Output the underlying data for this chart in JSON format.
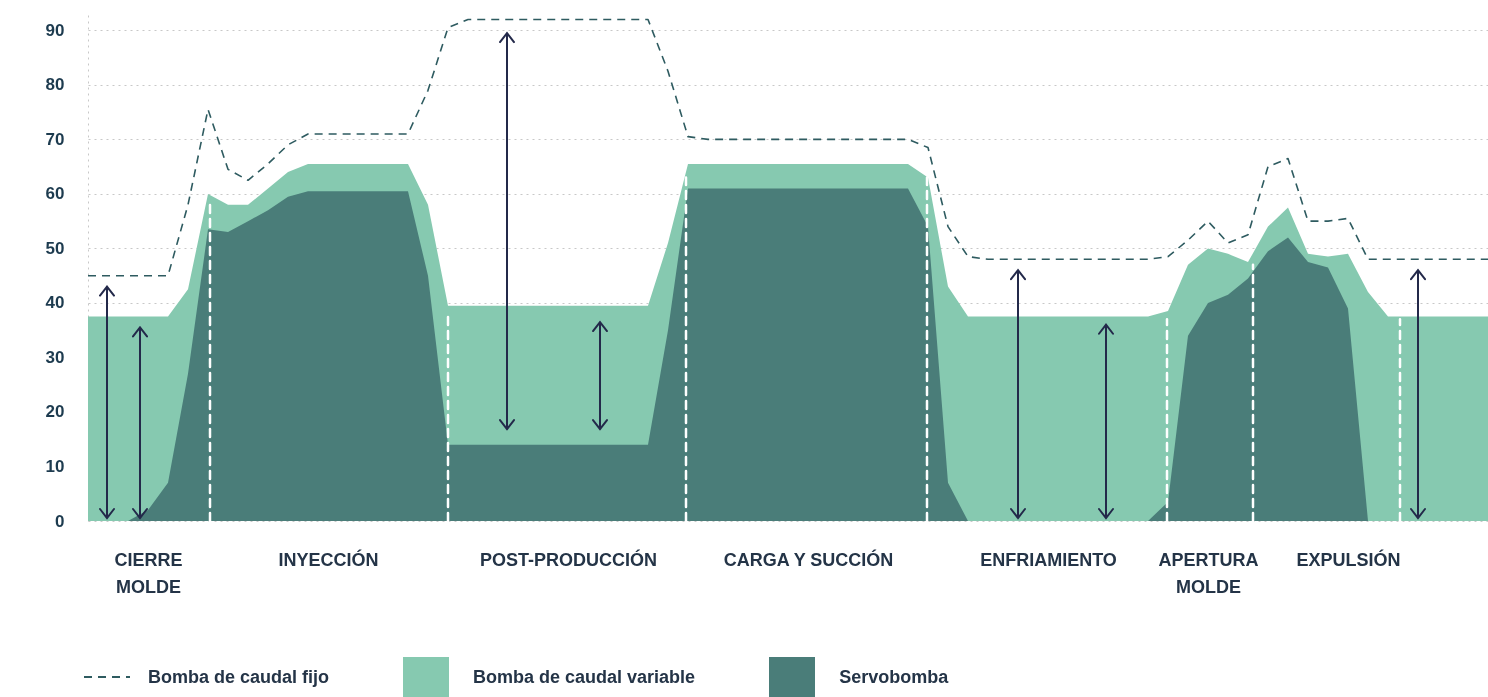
{
  "chart_data": {
    "type": "area",
    "categories": [
      null,
      null,
      null,
      "CIERRE\nMOLDE",
      null,
      null,
      null,
      null,
      null,
      null,
      null,
      null,
      "INYECCIÓN",
      null,
      null,
      null,
      null,
      null,
      null,
      null,
      null,
      null,
      null,
      null,
      "POST-PRODUCCIÓN",
      null,
      null,
      null,
      null,
      null,
      null,
      null,
      null,
      null,
      null,
      null,
      "CARGA Y SUCCIÓN",
      null,
      null,
      null,
      null,
      null,
      null,
      null,
      null,
      null,
      null,
      null,
      "ENFRIAMIENTO",
      null,
      null,
      null,
      null,
      null,
      null,
      null,
      "APERTURA\nMOLDE",
      null,
      null,
      null,
      null,
      null,
      null,
      "EXPULSIÓN",
      null,
      null,
      null,
      null,
      null,
      null,
      null
    ],
    "series": [
      {
        "name": "Bomba de caudal fijo",
        "type": "line",
        "line_style": "dashed",
        "color": "#2e5b60",
        "values": [
          45,
          45,
          45,
          45,
          45,
          58,
          75.5,
          64.5,
          62.5,
          65.5,
          69,
          71,
          71,
          71,
          71,
          71,
          71,
          79,
          90.5,
          92,
          92,
          92,
          92,
          92,
          92,
          92,
          92,
          92,
          92,
          82.5,
          70.5,
          70,
          70,
          70,
          70,
          70,
          70,
          70,
          70,
          70,
          70,
          70,
          68.5,
          54,
          48.5,
          48,
          48,
          48,
          48,
          48,
          48,
          48,
          48,
          48,
          48.5,
          51.5,
          55,
          51,
          52.5,
          65,
          66.5,
          55,
          55,
          55.5,
          48,
          48,
          48,
          48,
          48,
          48,
          48
        ]
      },
      {
        "name": "Bomba de caudal variable",
        "color": "#86c9b0",
        "values": [
          37.5,
          37.5,
          37.5,
          37.5,
          37.5,
          42.5,
          60,
          58,
          58,
          61,
          64,
          65.5,
          65.5,
          65.5,
          65.5,
          65.5,
          65.5,
          58,
          39.5,
          39.5,
          39.5,
          39.5,
          39.5,
          39.5,
          39.5,
          39.5,
          39.5,
          39.5,
          39.5,
          51,
          65.5,
          65.5,
          65.5,
          65.5,
          65.5,
          65.5,
          65.5,
          65.5,
          65.5,
          65.5,
          65.5,
          65.5,
          63,
          43,
          37.5,
          37.5,
          37.5,
          37.5,
          37.5,
          37.5,
          37.5,
          37.5,
          37.5,
          37.5,
          38.5,
          47,
          50,
          49,
          47.5,
          54,
          57.5,
          49,
          48.5,
          49,
          42,
          37.5,
          37.5,
          37.5,
          37.5,
          37.5,
          37.5
        ]
      },
      {
        "name": "Servobomba",
        "color": "#4a7d79",
        "values": [
          0,
          0,
          0,
          2,
          7,
          27,
          53.5,
          53,
          55,
          57,
          59.5,
          60.5,
          60.5,
          60.5,
          60.5,
          60.5,
          60.5,
          45,
          14,
          14,
          14,
          14,
          14,
          14,
          14,
          14,
          14,
          14,
          14,
          35,
          61,
          61,
          61,
          61,
          61,
          61,
          61,
          61,
          61,
          61,
          61,
          61,
          54,
          7,
          0,
          0,
          0,
          0,
          0,
          0,
          0,
          0,
          0,
          0,
          3.5,
          34,
          40,
          41.5,
          44.5,
          49.5,
          52,
          47.5,
          46.5,
          39,
          0,
          0,
          0,
          0,
          0,
          0,
          0
        ]
      }
    ],
    "ylim": [
      0,
      93
    ],
    "yticks": [
      0,
      10,
      20,
      30,
      40,
      50,
      60,
      70,
      80,
      90
    ],
    "grid": "y",
    "legend": "bottom"
  }
}
